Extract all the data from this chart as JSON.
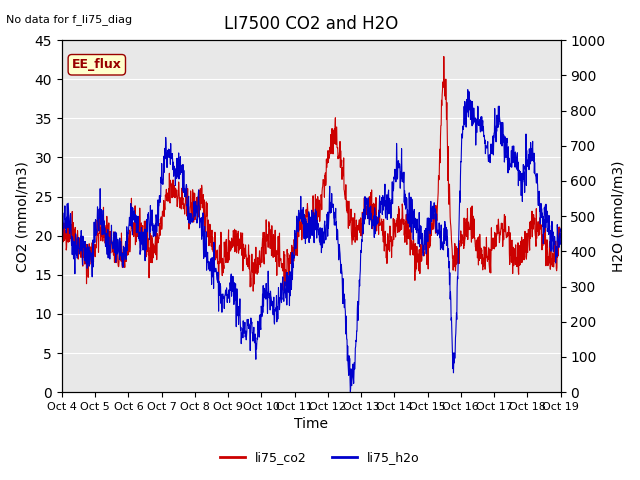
{
  "title": "LI7500 CO2 and H2O",
  "top_left_text": "No data for f_li75_diag",
  "xlabel": "Time",
  "ylabel_left": "CO2 (mmol/m3)",
  "ylabel_right": "H2O (mmol/m3)",
  "ylim_left": [
    0,
    45
  ],
  "ylim_right": [
    0,
    1000
  ],
  "yticks_left": [
    0,
    5,
    10,
    15,
    20,
    25,
    30,
    35,
    40,
    45
  ],
  "yticks_right": [
    0,
    100,
    200,
    300,
    400,
    500,
    600,
    700,
    800,
    900,
    1000
  ],
  "x_labels": [
    "Oct 4",
    "Oct 5",
    "Oct 6",
    "Oct 7",
    "Oct 8",
    "Oct 9",
    "Oct 10",
    "Oct 11",
    "Oct 12",
    "Oct 13",
    "Oct 14",
    "Oct 15",
    "Oct 16",
    "Oct 17",
    "Oct 18",
    "Oct 19"
  ],
  "background_color": "#ffffff",
  "plot_bg_color": "#e8e8e8",
  "grid_color": "#ffffff",
  "co2_color": "#cc0000",
  "h2o_color": "#0000cc",
  "ee_flux_box_color": "#ffffcc",
  "ee_flux_text_color": "#990000",
  "legend_items": [
    "li75_co2",
    "li75_h2o"
  ]
}
